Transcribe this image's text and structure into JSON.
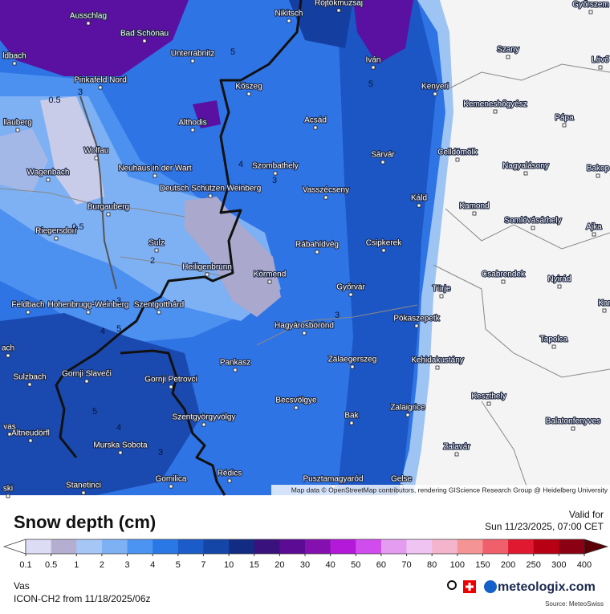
{
  "map": {
    "places": [
      "Ausschlag",
      "Bad Schönau",
      "Unterrabnitz",
      "Nikitsch",
      "Röjtökmuzsaj",
      "Győrszem",
      "Szany",
      "Iván",
      "Lövő",
      "ldbach",
      "Pinkafeld Nord",
      "Kőszeg",
      "Kenyeri",
      "Kemeneshőgyész",
      "Pápa",
      "llauberg",
      "Althodis",
      "Acsád",
      "Wolfau",
      "Sárvár",
      "Celldömölk",
      "Neuhaus in der Wart",
      "Szombathely",
      "Nagyalásony",
      "Bakop",
      "Wagenbach",
      "Deutsch Schützen Weinberg",
      "Vasszécseny",
      "Káld",
      "Burgauberg",
      "Kamond",
      "Somlóvásárhely",
      "Ajka",
      "Riegersdorf",
      "Sulz",
      "Rábahídvég",
      "Csipkerek",
      "Heiligenbrunn",
      "Körmend",
      "Csabrendek",
      "Nyirád",
      "Türje",
      "Feldbach",
      "Hohenbrugg-Weinberg",
      "Szentgotthárd",
      "Győrvár",
      "Kar",
      "Pókaszepetk",
      "Hagyárosbörönd",
      "ach",
      "Tapolca",
      "Kehidakustány",
      "Pankasz",
      "Zalaegerszeg",
      "Sulzbach",
      "Gornji Slaveči",
      "Gornji Petrovci",
      "Keszthely",
      "Becsvölgye",
      "Zalaigrice",
      "Bak",
      "Balatonfenyves",
      "Szentgyörgyvölgy",
      "vas",
      "Altneudörfl",
      "Murska Sobota",
      "Zalavár",
      "Rédics",
      "Gomilica",
      "Pusztamagyaród",
      "Gelse",
      "Stanetinci",
      "ski"
    ],
    "contour_labels": [
      0.5,
      3,
      5,
      4,
      3,
      0.5,
      2,
      3,
      4,
      5,
      5,
      4,
      3,
      5,
      3
    ],
    "attribution": "Map data © OpenStreetMap contributors, rendering GIScience Research Group @ Heidelberg University"
  },
  "legend": {
    "title": "Snow depth (cm)",
    "ticks": [
      0.1,
      0.5,
      1,
      2,
      3,
      4,
      5,
      7,
      10,
      15,
      20,
      30,
      40,
      50,
      60,
      70,
      80,
      100,
      150,
      200,
      250,
      300,
      400
    ],
    "colors": [
      "#dcdcf4",
      "#b4aed0",
      "#a6c6f6",
      "#7eb0f4",
      "#4c94f2",
      "#2a78e6",
      "#1c5cc8",
      "#1446a8",
      "#122c84",
      "#3a127e",
      "#5c0c94",
      "#8410b0",
      "#b418d8",
      "#d04cec",
      "#e49cf0",
      "#f0c4f2",
      "#f4b4cc",
      "#f49494",
      "#f0606c",
      "#e01830",
      "#b80014",
      "#8c0014"
    ],
    "under_color": "#ffffff",
    "over_color": "#5c0008"
  },
  "footer": {
    "valid_label": "Valid for",
    "valid_time": "Sun 11/23/2025, 07:00 CET",
    "region": "Vas",
    "model": "ICON-CH2 from  11/18/2025/06z",
    "brand": "meteologix.com",
    "source": "Source: MeteoSwiss"
  }
}
